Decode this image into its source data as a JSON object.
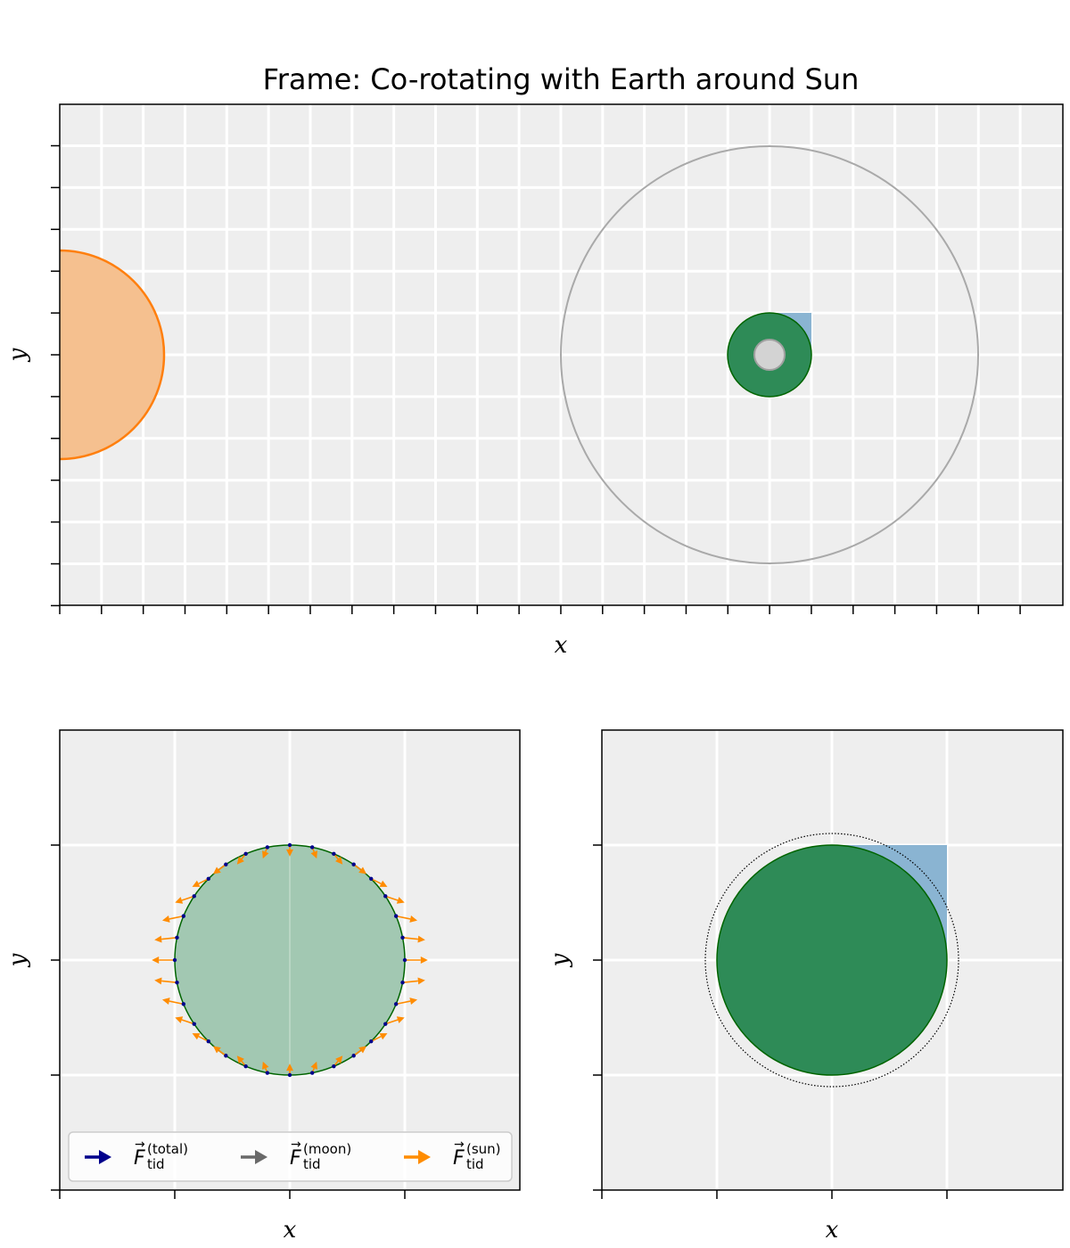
{
  "title": "Frame: Co-rotating with Earth around Sun",
  "colors": {
    "axes_bg": "#eeeeee",
    "grid": "#ffffff",
    "sun_fill": "#f5c08f",
    "sun_edge": "#ff7f0e",
    "earth_fill": "#2e8b57",
    "earth_edge": "#006400",
    "earth_light_fill": "#a2c8b2",
    "moon_fill": "#d3d3d3",
    "moon_edge": "#a0a0a0",
    "orbit": "#a9a9a9",
    "ocean_patch": "#8ab4d2",
    "total_force": "#00008b",
    "moon_force": "#696969",
    "sun_force": "#ff8c00"
  },
  "panels": {
    "top": {
      "xlabel": "x",
      "ylabel": "y"
    },
    "bottom_left": {
      "xlabel": "x",
      "ylabel": "y"
    },
    "bottom_right": {
      "xlabel": "x",
      "ylabel": "y"
    }
  },
  "legend": {
    "entries": [
      {
        "symbol": "F",
        "sub": "tid",
        "sup": "(total)",
        "color_key": "total_force"
      },
      {
        "symbol": "F",
        "sub": "tid",
        "sup": "(moon)",
        "color_key": "moon_force"
      },
      {
        "symbol": "F",
        "sub": "tid",
        "sup": "(sun)",
        "color_key": "sun_force"
      }
    ]
  },
  "chart_data": {
    "type": "diagram",
    "tidal_arrows": {
      "count": 32,
      "relative_length": 0.2
    }
  }
}
